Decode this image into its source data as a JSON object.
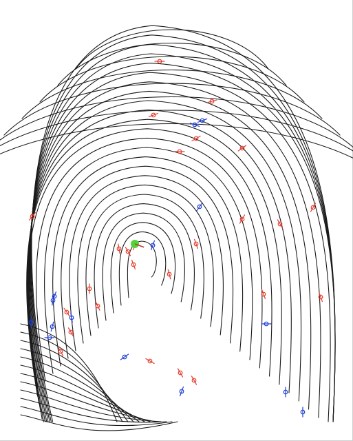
{
  "image": {
    "subject": "fingerprint",
    "background_color": "#ffffff",
    "ridge_color": "#1a1a1a",
    "colors": {
      "ending": "#e53b2c",
      "bifurcation": "#1f3fd6",
      "core": "#55d43a",
      "core_stroke": "#c0392b"
    }
  },
  "minutiae": [
    {
      "type": "ending",
      "angle": 0
    },
    {
      "type": "ending",
      "angle": 15
    },
    {
      "type": "ending",
      "angle": 20
    },
    {
      "type": "bifurcation",
      "angle": 200
    },
    {
      "type": "bifurcation",
      "angle": 160
    },
    {
      "type": "ending",
      "angle": 30
    },
    {
      "type": "ending",
      "angle": 0
    },
    {
      "type": "ending",
      "angle": 35
    },
    {
      "type": "bifurcation",
      "angle": 55
    },
    {
      "type": "ending",
      "angle": 60
    },
    {
      "type": "ending",
      "angle": 50
    },
    {
      "type": "ending",
      "angle": 60
    },
    {
      "type": "ending",
      "angle": -60
    },
    {
      "type": "bifurcation",
      "angle": 70
    },
    {
      "type": "ending",
      "angle": -70
    },
    {
      "type": "ending",
      "angle": -60
    },
    {
      "type": "ending",
      "angle": -80
    },
    {
      "type": "ending",
      "angle": -70
    },
    {
      "type": "ending",
      "angle": -75
    },
    {
      "type": "ending",
      "angle": 90
    },
    {
      "type": "bifurcation",
      "angle": 80
    },
    {
      "type": "ending",
      "angle": -70
    },
    {
      "type": "ending",
      "angle": -70
    },
    {
      "type": "bifurcation",
      "angle": 70
    },
    {
      "type": "ending",
      "angle": -65
    },
    {
      "type": "ending",
      "angle": -55
    },
    {
      "type": "bifurcation",
      "angle": 100
    },
    {
      "type": "bifurcation",
      "angle": 90
    },
    {
      "type": "bifurcation",
      "angle": 75
    },
    {
      "type": "bifurcation",
      "angle": 0
    },
    {
      "type": "ending",
      "angle": -60
    },
    {
      "type": "bifurcation",
      "angle": 0
    },
    {
      "type": "ending",
      "angle": -60
    },
    {
      "type": "bifurcation",
      "angle": 35
    },
    {
      "type": "ending",
      "angle": -30
    },
    {
      "type": "ending",
      "angle": -60
    },
    {
      "type": "ending",
      "angle": -60
    },
    {
      "type": "bifurcation",
      "angle": 70
    },
    {
      "type": "bifurcation",
      "angle": 90
    },
    {
      "type": "bifurcation",
      "angle": 90
    },
    {
      "type": "ending",
      "angle": 70
    }
  ],
  "core": {
    "type": "core",
    "angle": -20
  }
}
